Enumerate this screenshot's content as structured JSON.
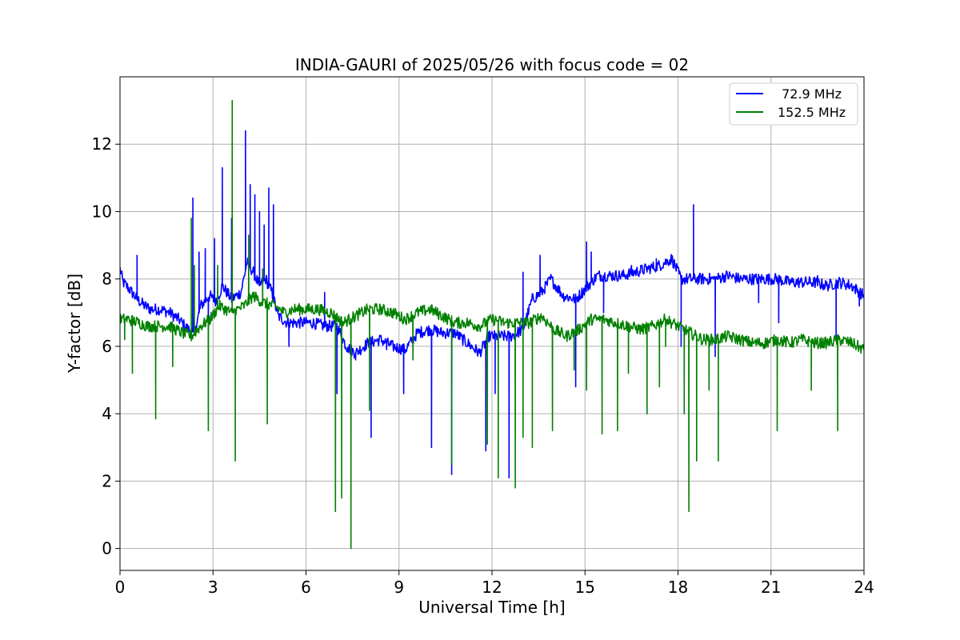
{
  "chart_data": {
    "type": "line",
    "title": "INDIA-GAURI of 2025/05/26 with focus code = 02",
    "xlabel": "Universal Time [h]",
    "ylabel": "Y-factor [dB]",
    "xlim": [
      0,
      24
    ],
    "ylim": [
      -0.65,
      14.0
    ],
    "xticks": [
      0,
      3,
      6,
      9,
      12,
      15,
      18,
      21,
      24
    ],
    "xtick_labels": [
      "0",
      "3",
      "6",
      "9",
      "12",
      "15",
      "18",
      "21",
      "24"
    ],
    "yticks": [
      0,
      2,
      4,
      6,
      8,
      10,
      12
    ],
    "ytick_labels": [
      "0",
      "2",
      "4",
      "6",
      "8",
      "10",
      "12"
    ],
    "grid": true,
    "legend_position": "top-right",
    "colors": {
      "series1": "#0000ff",
      "series2": "#008000",
      "grid": "#b0b0b0"
    },
    "series": [
      {
        "name": " 72.9 MHz",
        "color": "#0000ff",
        "x": [
          0.0,
          0.1,
          0.3,
          0.55,
          0.8,
          1.0,
          1.3,
          1.6,
          1.9,
          2.2,
          2.4,
          2.6,
          2.9,
          3.1,
          3.3,
          3.6,
          3.9,
          4.1,
          4.3,
          4.5,
          4.7,
          4.9,
          5.1,
          5.4,
          5.8,
          6.2,
          6.6,
          7.0,
          7.3,
          7.6,
          8.0,
          8.4,
          8.8,
          9.2,
          9.6,
          10.0,
          10.4,
          10.8,
          11.2,
          11.6,
          11.9,
          12.2,
          12.6,
          13.0,
          13.3,
          13.6,
          13.9,
          14.3,
          14.7,
          15.0,
          15.4,
          15.8,
          16.2,
          16.6,
          17.0,
          17.4,
          17.8,
          18.1,
          18.4,
          18.8,
          19.2,
          19.6,
          20.0,
          20.4,
          20.8,
          21.2,
          21.6,
          22.0,
          22.4,
          22.8,
          23.2,
          23.6,
          24.0
        ],
        "y": [
          8.3,
          7.9,
          7.7,
          7.4,
          7.2,
          7.1,
          7.1,
          7.0,
          6.8,
          6.5,
          6.4,
          7.2,
          7.5,
          7.3,
          7.8,
          7.4,
          7.6,
          8.5,
          8.2,
          7.8,
          8.0,
          7.6,
          6.9,
          6.7,
          6.7,
          6.7,
          6.6,
          6.6,
          6.0,
          5.8,
          6.1,
          6.2,
          6.0,
          5.9,
          6.4,
          6.5,
          6.4,
          6.4,
          6.1,
          5.8,
          6.3,
          6.3,
          6.3,
          6.5,
          7.4,
          7.6,
          8.0,
          7.5,
          7.4,
          7.7,
          8.1,
          8.1,
          8.1,
          8.2,
          8.3,
          8.4,
          8.6,
          8.0,
          8.0,
          8.0,
          8.0,
          8.1,
          8.0,
          8.0,
          8.0,
          8.0,
          7.9,
          7.9,
          7.9,
          7.8,
          7.9,
          7.8,
          7.5
        ]
      },
      {
        "name": "152.5 MHz",
        "color": "#008000",
        "x": [
          0.0,
          0.3,
          0.6,
          0.9,
          1.2,
          1.6,
          2.0,
          2.3,
          2.6,
          2.9,
          3.2,
          3.6,
          4.0,
          4.3,
          4.6,
          5.0,
          5.3,
          5.6,
          6.0,
          6.4,
          6.8,
          7.2,
          7.6,
          8.0,
          8.4,
          8.8,
          9.2,
          9.6,
          10.0,
          10.4,
          10.8,
          11.2,
          11.6,
          12.0,
          12.4,
          12.8,
          13.2,
          13.6,
          14.0,
          14.4,
          14.8,
          15.2,
          15.6,
          16.0,
          16.4,
          16.8,
          17.2,
          17.6,
          18.0,
          18.4,
          18.8,
          19.2,
          19.6,
          20.0,
          20.4,
          20.8,
          21.2,
          21.6,
          22.0,
          22.4,
          22.8,
          23.2,
          23.6,
          24.0
        ],
        "y": [
          6.8,
          6.8,
          6.7,
          6.6,
          6.6,
          6.6,
          6.4,
          6.3,
          6.6,
          6.8,
          7.2,
          7.0,
          7.2,
          7.5,
          7.3,
          7.2,
          7.0,
          7.1,
          7.1,
          7.1,
          7.0,
          6.7,
          6.9,
          7.1,
          7.1,
          7.0,
          6.8,
          7.0,
          7.1,
          6.9,
          6.7,
          6.7,
          6.6,
          6.8,
          6.7,
          6.7,
          6.7,
          6.9,
          6.5,
          6.3,
          6.5,
          6.8,
          6.8,
          6.7,
          6.6,
          6.5,
          6.6,
          6.8,
          6.6,
          6.4,
          6.2,
          6.2,
          6.3,
          6.2,
          6.1,
          6.1,
          6.2,
          6.1,
          6.2,
          6.1,
          6.1,
          6.2,
          6.1,
          5.9
        ]
      }
    ],
    "spikes": [
      {
        "series": 0,
        "x": [
          0.55,
          2.35,
          2.55,
          2.75,
          2.85,
          3.05,
          3.3,
          3.6,
          4.05,
          4.2,
          4.35,
          4.5,
          4.65,
          4.8,
          4.95,
          5.45,
          6.6,
          7.0,
          7.35,
          7.6,
          8.1,
          8.6,
          9.15,
          10.05,
          10.7,
          11.8,
          12.1,
          12.55,
          13.0,
          13.55,
          14.7,
          15.05,
          15.2,
          15.6,
          16.5,
          17.3,
          18.1,
          18.5,
          19.2,
          20.6,
          21.25,
          22.5,
          23.1,
          23.85
        ],
        "y": [
          8.7,
          10.4,
          8.8,
          8.9,
          6.5,
          9.2,
          11.3,
          9.8,
          12.4,
          10.8,
          10.5,
          10.0,
          9.6,
          10.7,
          10.2,
          6.0,
          7.6,
          4.6,
          5.9,
          5.6,
          3.3,
          5.9,
          4.6,
          3.0,
          2.2,
          2.9,
          4.6,
          2.1,
          8.2,
          8.7,
          4.8,
          9.1,
          8.8,
          7.0,
          8.4,
          8.6,
          6.0,
          10.2,
          5.7,
          7.3,
          6.7,
          8.1,
          6.2,
          7.2
        ]
      },
      {
        "series": 1,
        "x": [
          0.15,
          0.4,
          1.15,
          1.7,
          2.3,
          2.4,
          2.85,
          3.15,
          3.62,
          3.72,
          4.15,
          4.6,
          4.75,
          6.95,
          7.15,
          7.45,
          8.05,
          9.45,
          10.7,
          11.85,
          12.2,
          12.75,
          13.0,
          13.3,
          13.95,
          14.65,
          15.05,
          15.55,
          16.05,
          16.4,
          17.0,
          17.4,
          17.6,
          18.2,
          18.35,
          18.6,
          19.0,
          19.3,
          21.2,
          22.3,
          23.15
        ],
        "y": [
          6.2,
          5.2,
          3.85,
          5.4,
          9.8,
          8.4,
          3.5,
          8.4,
          13.3,
          2.6,
          9.3,
          8.3,
          3.7,
          1.1,
          1.5,
          0.0,
          4.1,
          5.6,
          2.5,
          3.1,
          2.1,
          1.8,
          3.3,
          3.0,
          3.5,
          5.3,
          4.7,
          3.4,
          3.5,
          5.2,
          4.0,
          4.8,
          6.0,
          4.0,
          1.1,
          2.6,
          4.7,
          2.6,
          3.5,
          4.7,
          3.5
        ]
      }
    ]
  }
}
